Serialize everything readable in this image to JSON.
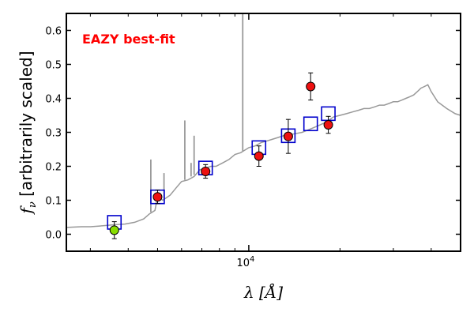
{
  "chart_data": {
    "type": "scatter",
    "annotation": "EAZY best-fit",
    "annotation_color": "#ff0000",
    "xlabel": "λ [Å]",
    "ylabel": "f_ν [arbitrarily scaled]",
    "xscale": "log",
    "xlim": [
      2500,
      50000
    ],
    "ylim": [
      -0.05,
      0.65
    ],
    "xtick_labels": [
      {
        "value": 10000,
        "label": "10",
        "exp": "4"
      }
    ],
    "ytick_values": [
      0.0,
      0.1,
      0.2,
      0.3,
      0.4,
      0.5,
      0.6
    ],
    "ytick_labels": [
      "0.0",
      "0.1",
      "0.2",
      "0.3",
      "0.4",
      "0.5",
      "0.6"
    ],
    "grid": false,
    "series": [
      {
        "kind": "template_spectrum",
        "color": "#999999",
        "x": [
          2500,
          2800,
          3000,
          3300,
          3600,
          3900,
          4200,
          4500,
          4700,
          4900,
          5000,
          5200,
          5500,
          5800,
          6000,
          6300,
          6600,
          6900,
          7200,
          7500,
          7800,
          8200,
          8600,
          9000,
          9400,
          9800,
          10000,
          10500,
          11000,
          11500,
          12000,
          12500,
          13000,
          13500,
          14000,
          15000,
          16000,
          17000,
          18000,
          19000,
          20000,
          21000,
          22000,
          23000,
          24000,
          25000,
          26000,
          27000,
          28000,
          29000,
          30000,
          31000,
          32000,
          33000,
          34000,
          35000,
          36000,
          37000,
          38000,
          39000,
          40000,
          42000,
          45000,
          48000,
          50000
        ],
        "y": [
          0.02,
          0.022,
          0.022,
          0.025,
          0.028,
          0.03,
          0.035,
          0.045,
          0.06,
          0.07,
          0.11,
          0.1,
          0.115,
          0.14,
          0.155,
          0.16,
          0.17,
          0.19,
          0.195,
          0.2,
          0.2,
          0.21,
          0.22,
          0.235,
          0.24,
          0.25,
          0.255,
          0.26,
          0.27,
          0.275,
          0.28,
          0.285,
          0.29,
          0.292,
          0.295,
          0.3,
          0.31,
          0.32,
          0.33,
          0.345,
          0.35,
          0.355,
          0.36,
          0.365,
          0.37,
          0.37,
          0.375,
          0.38,
          0.38,
          0.385,
          0.39,
          0.39,
          0.395,
          0.4,
          0.405,
          0.41,
          0.42,
          0.43,
          0.435,
          0.44,
          0.42,
          0.39,
          0.37,
          0.355,
          0.35
        ]
      },
      {
        "kind": "emission_lines",
        "color": "#999999",
        "lines": [
          {
            "x": 4750,
            "y_base": 0.065,
            "y_peak": 0.22
          },
          {
            "x": 5250,
            "y_base": 0.105,
            "y_peak": 0.18
          },
          {
            "x": 6150,
            "y_base": 0.16,
            "y_peak": 0.335
          },
          {
            "x": 6450,
            "y_base": 0.17,
            "y_peak": 0.21
          },
          {
            "x": 6600,
            "y_base": 0.175,
            "y_peak": 0.29
          },
          {
            "x": 9550,
            "y_base": 0.245,
            "y_peak": 0.65
          }
        ]
      },
      {
        "kind": "model_photometry",
        "marker": "open_square",
        "color": "#0000cc",
        "x": [
          3600,
          5000,
          7200,
          10800,
          13500,
          16000,
          18300
        ],
        "y": [
          0.035,
          0.11,
          0.195,
          0.255,
          0.29,
          0.325,
          0.355
        ]
      },
      {
        "kind": "observed_photometry",
        "marker": "filled_circle",
        "color": "#ee1111",
        "edgecolor": "#000000",
        "x": [
          5000,
          7200,
          10800,
          13500,
          16000,
          18300
        ],
        "y": [
          0.11,
          0.185,
          0.23,
          0.288,
          0.435,
          0.322
        ],
        "yerr": [
          0.02,
          0.02,
          0.03,
          0.05,
          0.04,
          0.025
        ]
      },
      {
        "kind": "observed_photometry_uv",
        "marker": "filled_circle",
        "color": "#88dd00",
        "edgecolor": "#000000",
        "x": [
          3600
        ],
        "y": [
          0.012
        ],
        "yerr": [
          0.025
        ]
      }
    ]
  }
}
